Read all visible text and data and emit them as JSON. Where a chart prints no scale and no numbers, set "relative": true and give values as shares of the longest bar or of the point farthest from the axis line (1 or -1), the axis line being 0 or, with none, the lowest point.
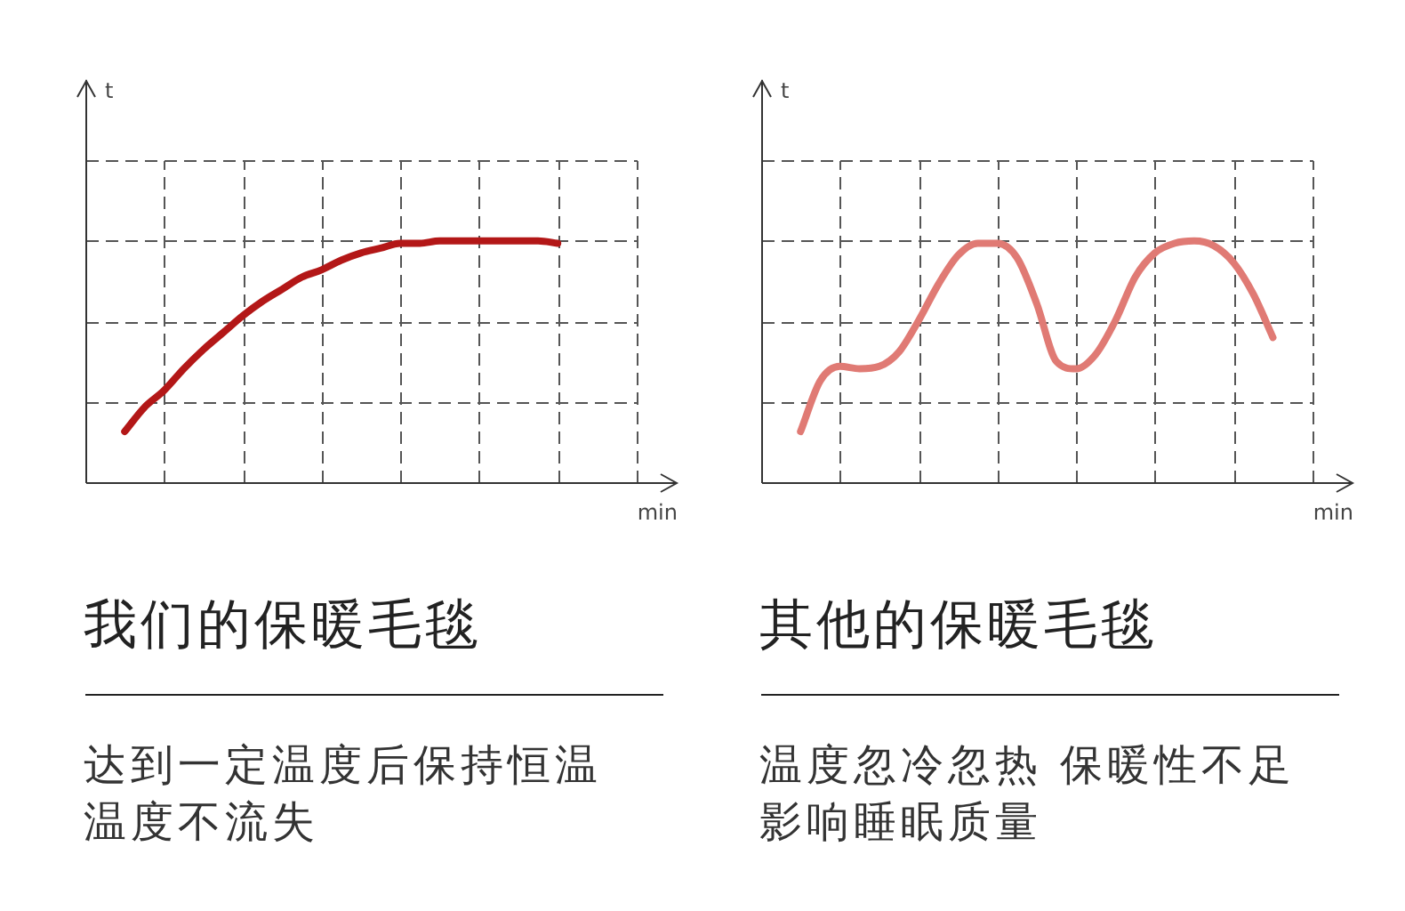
{
  "chart_data": [
    {
      "type": "line",
      "title": "我们的保暖毛毯",
      "subtitle": "达到一定温度后保持恒温温度不流失",
      "xlabel": "min",
      "ylabel": "t",
      "relative": true,
      "grid": true,
      "categories": [
        null,
        null,
        null,
        null,
        null,
        null,
        null,
        null,
        null,
        null,
        null,
        null,
        null,
        null,
        null,
        null,
        null,
        null,
        null,
        null,
        null,
        null,
        null,
        null,
        null,
        null,
        null,
        null,
        null,
        null,
        null
      ],
      "series": [
        {
          "color": "#b31717",
          "values": [
            null,
            null,
            0.21,
            0.31,
            0.38,
            0.47,
            0.55,
            0.62,
            0.69,
            0.75,
            0.8,
            0.85,
            0.88,
            0.92,
            0.95,
            0.97,
            0.99,
            0.99,
            1.0,
            1.0,
            1.0,
            1.0,
            1.0,
            1.0,
            0.99,
            null,
            null,
            null,
            null,
            null,
            null
          ]
        }
      ]
    },
    {
      "type": "line",
      "title": "其他的保暖毛毯",
      "subtitle": "温度忽冷忽热 保暖性不足影响睡眠质量",
      "xlabel": "min",
      "ylabel": "t",
      "relative": true,
      "grid": true,
      "categories": [
        null,
        null,
        null,
        null,
        null,
        null,
        null,
        null,
        null,
        null,
        null,
        null,
        null,
        null,
        null,
        null,
        null,
        null,
        null,
        null,
        null,
        null,
        null,
        null,
        null,
        null,
        null,
        null,
        null,
        null,
        null
      ],
      "series": [
        {
          "color": "#e07a74",
          "values": [
            null,
            null,
            0.21,
            0.42,
            0.48,
            0.47,
            0.48,
            0.54,
            0.67,
            0.82,
            0.94,
            0.99,
            0.99,
            0.93,
            0.74,
            0.5,
            0.47,
            0.53,
            0.67,
            0.85,
            0.95,
            0.99,
            1.0,
            0.98,
            0.91,
            0.78,
            0.6,
            null,
            null,
            null,
            null
          ]
        }
      ]
    }
  ]
}
